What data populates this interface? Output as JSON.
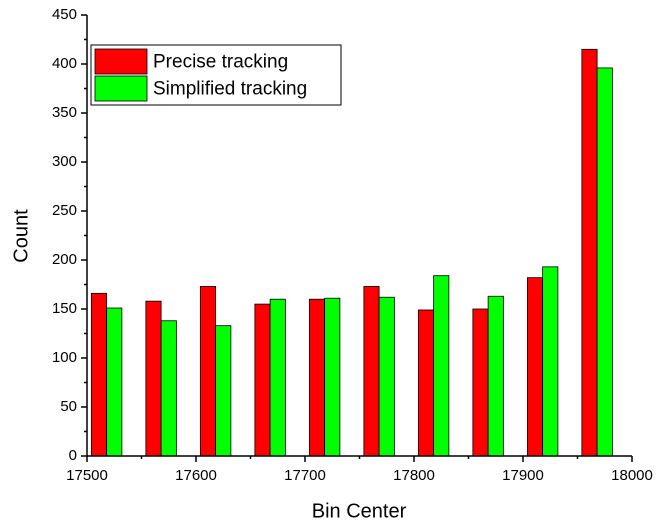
{
  "chart_data": {
    "type": "bar",
    "xlabel": "Bin Center",
    "ylabel": "Count",
    "x": [
      17518,
      17568,
      17618,
      17668,
      17718,
      17768,
      17818,
      17868,
      17918,
      17968
    ],
    "series": [
      {
        "name": "Precise tracking",
        "color": "#ff0000",
        "values": [
          166,
          158,
          173,
          155,
          160,
          173,
          149,
          150,
          182,
          415
        ]
      },
      {
        "name": "Simplified tracking",
        "color": "#00ff00",
        "values": [
          151,
          138,
          133,
          160,
          161,
          162,
          184,
          163,
          193,
          396
        ]
      }
    ],
    "xlim": [
      17500,
      18000
    ],
    "xticks": [
      17500,
      17600,
      17700,
      17800,
      17900,
      18000
    ],
    "ylim": [
      0,
      450
    ],
    "yticks": [
      0,
      50,
      100,
      150,
      200,
      250,
      300,
      350,
      400,
      450
    ],
    "legend": "upper left"
  }
}
